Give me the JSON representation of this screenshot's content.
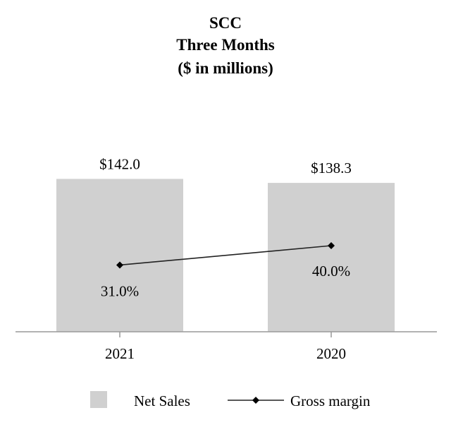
{
  "chart_data": {
    "type": "bar",
    "title": [
      "SCC",
      "Three Months",
      "($ in millions)"
    ],
    "categories": [
      "2021",
      "2020"
    ],
    "series": [
      {
        "name": "Net Sales",
        "kind": "bar",
        "values": [
          142.0,
          138.3
        ],
        "labels": [
          "$142.0",
          "$138.3"
        ],
        "color": "#d0d0d0"
      },
      {
        "name": "Gross margin",
        "kind": "line",
        "unit": "%",
        "values": [
          31.0,
          40.0
        ],
        "labels": [
          "31.0%",
          "40.0%"
        ],
        "color": "#222222",
        "marker": "diamond"
      }
    ],
    "legend": {
      "placement": "bottom",
      "items": [
        "Net Sales",
        "Gross margin"
      ]
    },
    "xlabel": "",
    "ylabel": "",
    "ylim": [
      0,
      200
    ],
    "y2lim": [
      0,
      100
    ],
    "grid": false
  }
}
